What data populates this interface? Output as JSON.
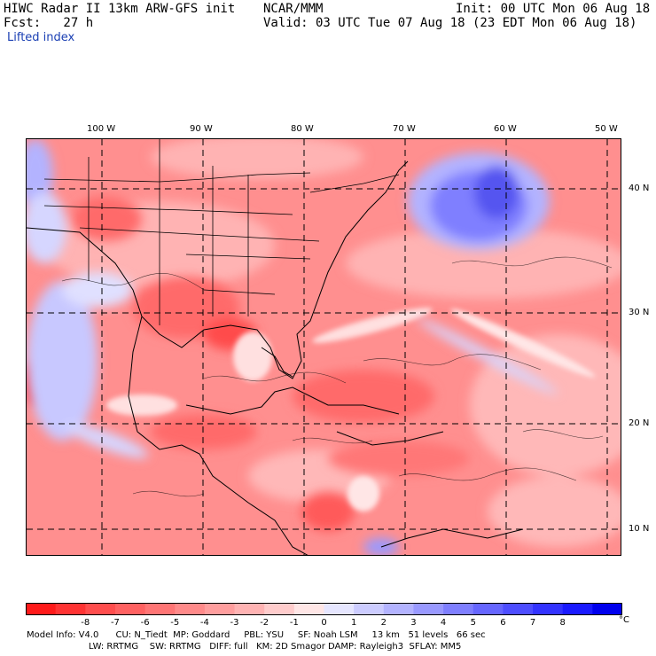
{
  "header": {
    "left_line1": "HIWC Radar II 13km ARW-GFS init",
    "center_line1": "NCAR/MMM",
    "right_line1": "Init: 00 UTC Mon 06 Aug 18",
    "left_line2": "Fcst:   27 h",
    "right_line2": "Valid: 03 UTC Tue 07 Aug 18 (23 EDT Mon 06 Aug 18)",
    "field_name": "Lifted index"
  },
  "axes": {
    "lon_labels": [
      "100 W",
      "90 W",
      "80 W",
      "70 W",
      "60 W",
      "50 W"
    ],
    "lat_labels": [
      "40 N",
      "30 N",
      "20 N",
      "10 N"
    ]
  },
  "colorbar": {
    "labels": [
      "-8",
      "-7",
      "-6",
      "-5",
      "-4",
      "-3",
      "-2",
      "-1",
      "0",
      "1",
      "2",
      "3",
      "4",
      "5",
      "6",
      "7",
      "8"
    ],
    "unit": "°C",
    "colors": [
      "#ff1a1a",
      "#ff3333",
      "#ff4d4d",
      "#ff6161",
      "#ff7575",
      "#ff8a8a",
      "#ff9e9e",
      "#ffb3b3",
      "#ffcccc",
      "#ffe6e6",
      "#e6e6ff",
      "#ccccff",
      "#b3b3ff",
      "#9999ff",
      "#7f7fff",
      "#6666ff",
      "#4d4dff",
      "#3333ff",
      "#1a1aff",
      "#0000ee"
    ]
  },
  "model_info": {
    "line1": "Model Info: V4.0      CU: N_Tiedt  MP: Goddard     PBL: YSU     SF: Noah LSM     13 km   51 levels   66 sec",
    "line2": "                      LW: RRTMG    SW: RRTMG   DIFF: full   KM: 2D Smagor DAMP: Rayleigh3  SFLAY: MM5"
  },
  "map_colors": {
    "background": "#ff8f8f",
    "light": "#ffb8b8",
    "pale": "#ffe0e0",
    "strong": "#ff6a6a",
    "deep": "#ff4c4c",
    "blue_light": "#d6d6ff",
    "blue_mid": "#9a9aff",
    "blue_deep": "#5555f0",
    "lines": "#000000"
  }
}
